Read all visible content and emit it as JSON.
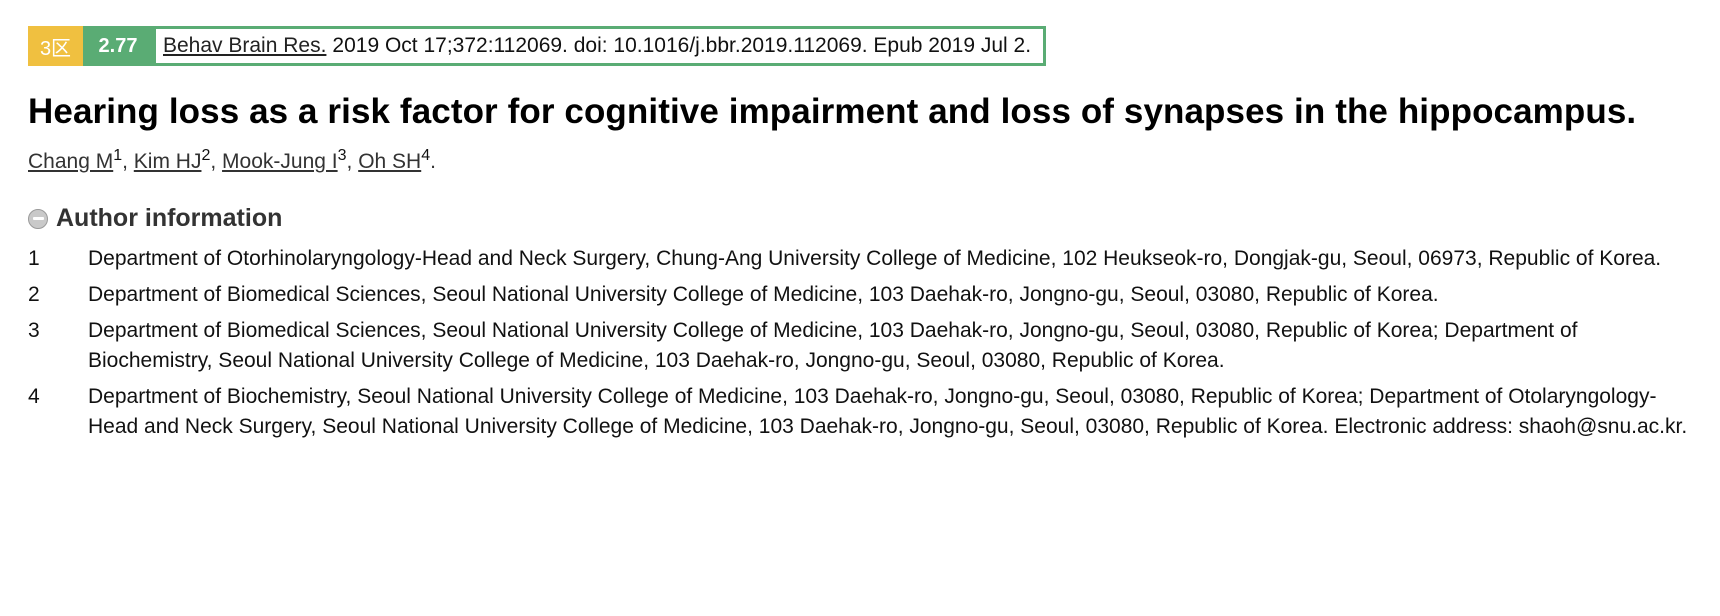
{
  "citation": {
    "zone_badge": "3区",
    "impact_factor": "2.77",
    "journal": "Behav Brain Res.",
    "details": "2019 Oct 17;372:112069. doi: 10.1016/j.bbr.2019.112069. Epub 2019 Jul 2."
  },
  "title": "Hearing loss as a risk factor for cognitive impairment and loss of synapses in the hippocampus.",
  "authors": [
    {
      "name": "Chang M",
      "sup": "1"
    },
    {
      "name": "Kim HJ",
      "sup": "2"
    },
    {
      "name": "Mook-Jung I",
      "sup": "3"
    },
    {
      "name": "Oh SH",
      "sup": "4"
    }
  ],
  "author_separator": ", ",
  "authors_terminator": ".",
  "author_info": {
    "label": "Author information"
  },
  "affiliations": [
    {
      "num": "1",
      "text": "Department of Otorhinolaryngology-Head and Neck Surgery, Chung-Ang University College of Medicine, 102 Heukseok-ro, Dongjak-gu, Seoul, 06973, Republic of Korea."
    },
    {
      "num": "2",
      "text": "Department of Biomedical Sciences, Seoul National University College of Medicine, 103 Daehak-ro, Jongno-gu, Seoul, 03080, Republic of Korea."
    },
    {
      "num": "3",
      "text": "Department of Biomedical Sciences, Seoul National University College of Medicine, 103 Daehak-ro, Jongno-gu, Seoul, 03080, Republic of Korea; Department of Biochemistry, Seoul National University College of Medicine, 103 Daehak-ro, Jongno-gu, Seoul, 03080, Republic of Korea."
    },
    {
      "num": "4",
      "text": "Department of Biochemistry, Seoul National University College of Medicine, 103 Daehak-ro, Jongno-gu, Seoul, 03080, Republic of Korea; Department of Otolaryngology-Head and Neck Surgery, Seoul National University College of Medicine, 103 Daehak-ro, Jongno-gu, Seoul, 03080, Republic of Korea. Electronic address: shaoh@snu.ac.kr."
    }
  ],
  "colors": {
    "zone_badge_bg": "#f0c040",
    "impact_factor_bg": "#5aac74",
    "cite_border": "#5aac74"
  }
}
